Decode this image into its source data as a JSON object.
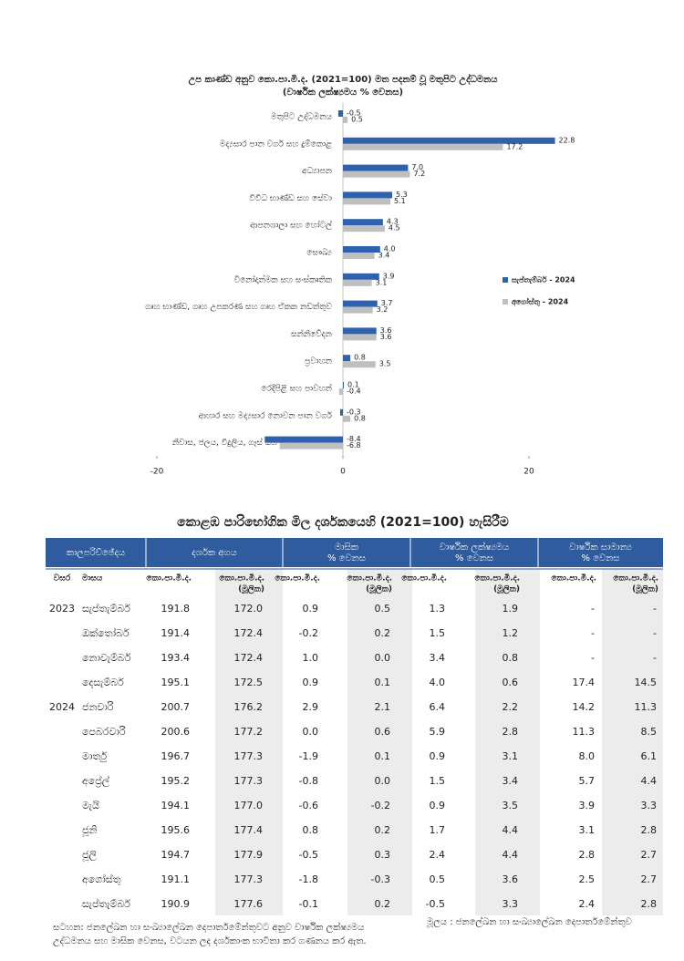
{
  "chart_data": {
    "type": "hbar",
    "title": "උප කාණ්ඩ අනුව කො.පා.මි.ද. (2021=100) මත පදනම් වූ මතුපිට උද්ධමනය",
    "subtitle": "(වාර්ෂික ලක්ෂ්‍යමය % වෙනස)",
    "categories": [
      "මතුපිට උද්ධමනය",
      "මද්‍යසාර පාන වර්ග සහ දුම්කොළ",
      "අධ්‍යාපන",
      "විවිධ භාණ්ඩ සහ සේවා",
      "ආපනශාලා සහ හෝටල්",
      "සෞඛ්‍ය",
      "විනෝදාත්මක සහ සංස්කෘතික",
      "ගෘහ භාණ්ඩ, ගෘහ උපකරණ සහ ගෘහ ඒකක නඩත්තුව",
      "සන්නිවේදන",
      "ප්‍රවාහන",
      "රෙදිපිළි සහ පාවහන්",
      "ආහාර සහ මද්‍යසාර නොවන පාන වර්ග",
      "නිවාස, ජලය, විදුලිය, ගෑස් සහ වෙනත් ඉන්ධන"
    ],
    "series": [
      {
        "name": "සැප්තැම්බර් - 2024",
        "color": "#2e62ad",
        "values": [
          -0.5,
          22.8,
          7,
          5.3,
          4.3,
          4,
          3.9,
          3.7,
          3.6,
          0.8,
          0.1,
          -0.3,
          -8.4
        ],
        "value_labels": [
          "-0.5",
          "22.8",
          "7.0",
          "5.3",
          "4.3",
          "4.0",
          "3.9",
          "3.7",
          "3.6",
          "0.8",
          "0.1",
          "-0.3",
          "-8.4"
        ]
      },
      {
        "name": "අගෝස්තු - 2024",
        "color": "#bfbfbf",
        "values": [
          0.5,
          17.2,
          7.2,
          5.1,
          4.5,
          3.4,
          3.1,
          3.2,
          3.6,
          3.5,
          -0.4,
          0.8,
          -6.8
        ],
        "value_labels": [
          "0.5",
          "17.2",
          "7.2",
          "5.1",
          "4.5",
          "3.4",
          "3.1",
          "3.2",
          "3.6",
          "3.5",
          "-0.4",
          "0.8",
          "-6.8"
        ]
      }
    ],
    "xlim": [
      -20,
      25
    ],
    "xticks": [
      -20,
      0,
      20
    ],
    "legend": "right"
  },
  "table": {
    "title": "කොළඹ පාරිභෝගික මිල දර්ශකයෙහි (2021=100) හැසිරීම",
    "header": [
      [
        "කාලපරිච්ඡේදය"
      ],
      [
        "දර්ශක අගය"
      ],
      [
        "මාසික",
        "% වෙනස"
      ],
      [
        "වාර්ෂික ලක්ෂ්‍යමය",
        "% වෙනස"
      ],
      [
        "වාර්ෂික සාමාන්‍ය",
        "% වෙනස"
      ]
    ],
    "subheader": [
      [
        "වසර"
      ],
      [
        "මාසය"
      ],
      [
        "කො.පා.මි.ද."
      ],
      [
        "කො.පා.මි.ද.",
        "(මූලික)"
      ],
      [
        "කො.පා.මි.ද."
      ],
      [
        "කො.පා.මි.ද.",
        "(මූලික)"
      ],
      [
        "කො.පා.මි.ද."
      ],
      [
        "කො.පා.මි.ද.",
        "(මූලික)"
      ],
      [
        "කො.පා.මි.ද."
      ],
      [
        "කො.පා.මි.ද.",
        "(මූලික)"
      ]
    ],
    "rows": [
      {
        "year": "2023",
        "month": "සැප්තැම්බර්",
        "cells": [
          "191.8",
          "172.0",
          "0.9",
          "0.5",
          "1.3",
          "1.9",
          "-",
          "-"
        ]
      },
      {
        "month": "ඔක්තෝබර්",
        "cells": [
          "191.4",
          "172.4",
          "-0.2",
          "0.2",
          "1.5",
          "1.2",
          "-",
          "-"
        ]
      },
      {
        "month": "නොවැම්බර්",
        "cells": [
          "193.4",
          "172.4",
          "1.0",
          "0.0",
          "3.4",
          "0.8",
          "-",
          "-"
        ]
      },
      {
        "month": "දෙසැම්බර්",
        "cells": [
          "195.1",
          "172.5",
          "0.9",
          "0.1",
          "4.0",
          "0.6",
          "17.4",
          "14.5"
        ]
      },
      {
        "year": "2024",
        "month": "ජනවාරි",
        "cells": [
          "200.7",
          "176.2",
          "2.9",
          "2.1",
          "6.4",
          "2.2",
          "14.2",
          "11.3"
        ]
      },
      {
        "month": "පෙබරවාරි",
        "cells": [
          "200.6",
          "177.2",
          "0.0",
          "0.6",
          "5.9",
          "2.8",
          "11.3",
          "8.5"
        ]
      },
      {
        "month": "මාර්තු",
        "cells": [
          "196.7",
          "177.3",
          "-1.9",
          "0.1",
          "0.9",
          "3.1",
          "8.0",
          "6.1"
        ]
      },
      {
        "month": "අප්‍රේල්",
        "cells": [
          "195.2",
          "177.3",
          "-0.8",
          "0.0",
          "1.5",
          "3.4",
          "5.7",
          "4.4"
        ]
      },
      {
        "month": "මැයි",
        "cells": [
          "194.1",
          "177.0",
          "-0.6",
          "-0.2",
          "0.9",
          "3.5",
          "3.9",
          "3.3"
        ]
      },
      {
        "month": "ජූනි",
        "cells": [
          "195.6",
          "177.4",
          "0.8",
          "0.2",
          "1.7",
          "4.4",
          "3.1",
          "2.8"
        ]
      },
      {
        "month": "ජූලි",
        "cells": [
          "194.7",
          "177.9",
          "-0.5",
          "0.3",
          "2.4",
          "4.4",
          "2.8",
          "2.7"
        ]
      },
      {
        "month": "අගෝස්තු",
        "cells": [
          "191.1",
          "177.3",
          "-1.8",
          "-0.3",
          "0.5",
          "3.6",
          "2.5",
          "2.7"
        ]
      },
      {
        "month": "සැප්තැම්බර්",
        "cells": [
          "190.9",
          "177.6",
          "-0.1",
          "0.2",
          "-0.5",
          "3.3",
          "2.4",
          "2.8"
        ]
      }
    ],
    "note": "සටහන: ජනලේඛන හා සංඛ්‍යාලේඛන දෙපාර්තමේන්තුවට අනුව වාර්ෂික ලක්ෂ්‍යමය උද්ධමනය සහ මාසික වෙනස, වටයන ලද දර්ශකාංක භාවිතා කර ගණනය කර ඇත.",
    "source": "මූලය : ජනලේඛන හා සංඛ්‍යාලේඛන දෙපාර්තමේන්තුව"
  }
}
